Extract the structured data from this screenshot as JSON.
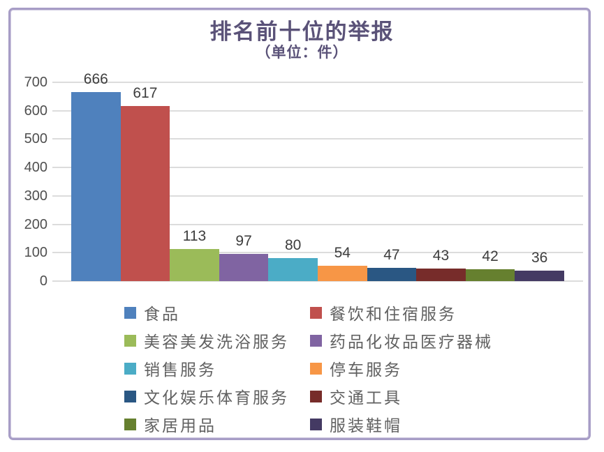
{
  "frame_color": "#a79dc6",
  "chart_data": {
    "type": "bar",
    "title": "排名前十位的举报",
    "subtitle": "（单位：件）",
    "categories": [
      "食品",
      "餐饮和住宿服务",
      "美容美发洗浴服务",
      "药品化妆品医疗器械",
      "销售服务",
      "停车服务",
      "文化娱乐体育服务",
      "交通工具",
      "家居用品",
      "服装鞋帽"
    ],
    "values": [
      666,
      617,
      113,
      97,
      80,
      54,
      47,
      43,
      42,
      36
    ],
    "colors": [
      "#4F81BD",
      "#C0504D",
      "#9BBB59",
      "#8064A2",
      "#4BACC6",
      "#F79646",
      "#2A5783",
      "#772C2A",
      "#66802F",
      "#443A63"
    ],
    "value_labels": [
      "666",
      "617",
      "113",
      "97",
      "80",
      "54",
      "47",
      "43",
      "42",
      "36"
    ],
    "ylim": [
      0,
      700
    ],
    "yticks": [
      0,
      100,
      200,
      300,
      400,
      500,
      600,
      700
    ],
    "ytick_labels": [
      "0",
      "100",
      "200",
      "300",
      "400",
      "500",
      "600",
      "700"
    ],
    "grid": true,
    "legend_position": "bottom",
    "legend_columns": 2,
    "title_color": "#5a5278",
    "gridline_color": "#dcdcdc",
    "tick_label_color": "#4f4f4f",
    "value_label_color": "#3d3d3d",
    "legend_label_color": "#616161"
  }
}
